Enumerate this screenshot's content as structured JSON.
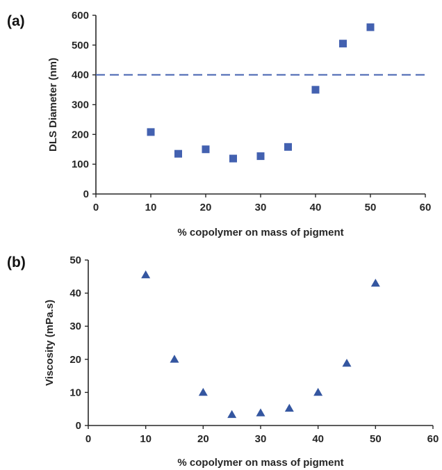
{
  "chart_data": [
    {
      "type": "scatter",
      "panel_label": "(a)",
      "xlabel": "% copolymer on mass of pigment",
      "ylabel": "DLS Diameter (nm)",
      "xlim": [
        0,
        60
      ],
      "ylim": [
        0,
        600
      ],
      "xticks": [
        0,
        10,
        20,
        30,
        40,
        50,
        60
      ],
      "yticks": [
        0,
        100,
        200,
        300,
        400,
        500,
        600
      ],
      "marker": "square",
      "color": "#4361b0",
      "grid": false,
      "series": [
        {
          "x": [
            10,
            15,
            20,
            25,
            30,
            35,
            40,
            45,
            50
          ],
          "y": [
            208,
            135,
            150,
            119,
            127,
            158,
            350,
            505,
            560
          ]
        }
      ],
      "reference_line": {
        "axis": "y",
        "value": 400,
        "style": "dashed",
        "color": "#4361b0"
      }
    },
    {
      "type": "scatter",
      "panel_label": "(b)",
      "xlabel": "% copolymer on mass of pigment",
      "ylabel": "Viscosity (mPa.s)",
      "xlim": [
        0,
        60
      ],
      "ylim": [
        0,
        50
      ],
      "xticks": [
        0,
        10,
        20,
        30,
        40,
        50,
        60
      ],
      "yticks": [
        0,
        10,
        20,
        30,
        40,
        50
      ],
      "marker": "triangle",
      "color": "#3456a0",
      "grid": false,
      "series": [
        {
          "x": [
            10,
            15,
            20,
            25,
            30,
            35,
            40,
            45,
            50
          ],
          "y": [
            45.5,
            20,
            10,
            3.3,
            3.8,
            5.2,
            10,
            18.8,
            43
          ]
        }
      ]
    }
  ]
}
